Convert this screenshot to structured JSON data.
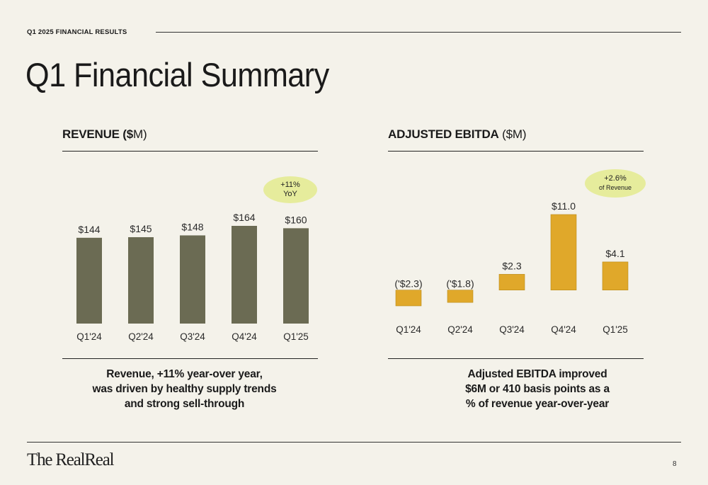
{
  "header": {
    "eyebrow": "Q1 2025 FINANCIAL RESULTS",
    "title": "Q1 Financial Summary"
  },
  "revenue": {
    "title_bold_1": "REVENUE (",
    "title_bold_2": "$",
    "title_rest": "M)",
    "bubble_line1": "+11%",
    "bubble_line2": "YoY",
    "caption_line1": "Revenue, +11% year-over year,",
    "caption_line2": "was driven by healthy supply trends",
    "caption_line3": "and strong sell-through"
  },
  "ebitda": {
    "title_bold": "ADJUSTED EBITDA",
    "title_rest": " ($M)",
    "bubble_line1": "+2.6%",
    "bubble_line2": "of Revenue",
    "caption_line1": "Adjusted EBITDA improved",
    "caption_line2": "$6M or 410 basis points as a",
    "caption_line3": "% of revenue year-over-year"
  },
  "chart_data": [
    {
      "type": "bar",
      "title": "REVENUE ($M)",
      "categories": [
        "Q1'24",
        "Q2'24",
        "Q3'24",
        "Q4'24",
        "Q1'25"
      ],
      "values": [
        144,
        145,
        148,
        164,
        160
      ],
      "data_labels": [
        "$144",
        "$145",
        "$148",
        "$164",
        "$160"
      ],
      "color": "#6b6b53",
      "ylim": [
        0,
        164
      ]
    },
    {
      "type": "bar",
      "title": "ADJUSTED EBITDA ($M)",
      "categories": [
        "Q1'24",
        "Q2'24",
        "Q3'24",
        "Q4'24",
        "Q1'25"
      ],
      "values": [
        -2.3,
        -1.8,
        2.3,
        11.0,
        4.1
      ],
      "data_labels": [
        "('$2.3)",
        "('$1.8)",
        "$2.3",
        "$11.0",
        "$4.1"
      ],
      "color": "#e0a82a",
      "ylim": [
        -2.3,
        11.0
      ]
    }
  ],
  "footer": {
    "logo": "The RealReal",
    "page_number": "8"
  }
}
